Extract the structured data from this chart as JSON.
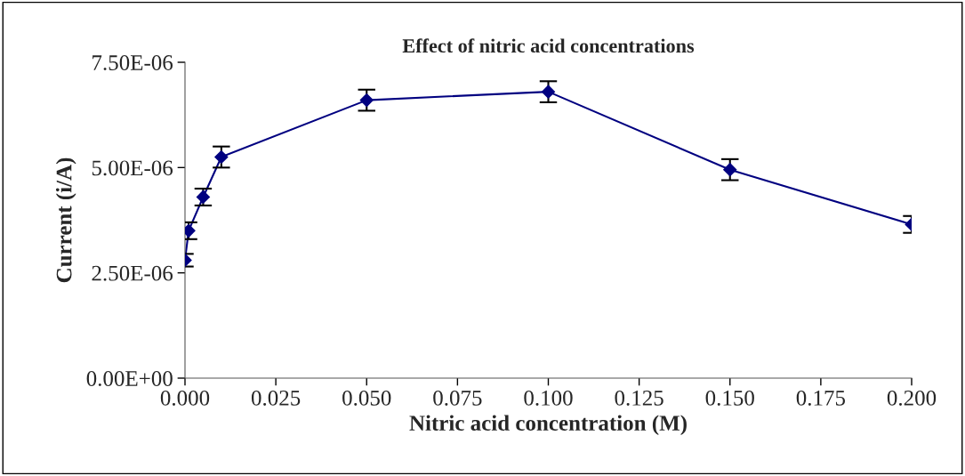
{
  "chart_data": {
    "type": "line",
    "title": "Effect of nitric acid concentrations",
    "xlabel": "Nitric acid concentration (M)",
    "ylabel": "Current (i/A)",
    "x": [
      0.0,
      0.001,
      0.005,
      0.01,
      0.05,
      0.1,
      0.15,
      0.2
    ],
    "series": [
      {
        "color": "#000080",
        "values": [
          2.8e-06,
          3.5e-06,
          4.3e-06,
          5.25e-06,
          6.6e-06,
          6.8e-06,
          4.95e-06,
          3.65e-06
        ],
        "errors": [
          1.5e-07,
          2e-07,
          2e-07,
          2.5e-07,
          2.5e-07,
          2.5e-07,
          2.5e-07,
          2e-07
        ]
      }
    ],
    "xlim": [
      0.0,
      0.2
    ],
    "xticks": [
      {
        "value": 0.0,
        "label": "0.000"
      },
      {
        "value": 0.025,
        "label": "0.025"
      },
      {
        "value": 0.05,
        "label": "0.050"
      },
      {
        "value": 0.075,
        "label": "0.075"
      },
      {
        "value": 0.1,
        "label": "0.100"
      },
      {
        "value": 0.125,
        "label": "0.125"
      },
      {
        "value": 0.15,
        "label": "0.150"
      },
      {
        "value": 0.175,
        "label": "0.175"
      },
      {
        "value": 0.2,
        "label": "0.200"
      }
    ],
    "ylim": [
      0.0,
      7.5e-06
    ],
    "yticks": [
      {
        "value": 0.0,
        "label": "0.00E+00"
      },
      {
        "value": 2.5e-06,
        "label": "2.50E-06"
      },
      {
        "value": 5e-06,
        "label": "5.00E-06"
      },
      {
        "value": 7.5e-06,
        "label": "7.50E-06"
      }
    ],
    "marker": "diamond",
    "line_style": "solid",
    "grid": false,
    "legend": false
  }
}
